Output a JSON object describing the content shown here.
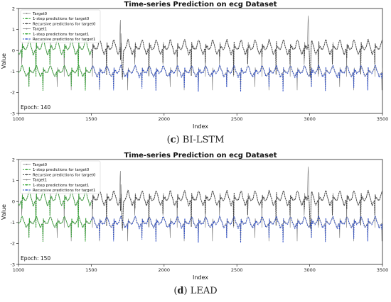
{
  "colors": {
    "target": "#7a7a7a",
    "target_marker": "#333333",
    "one_step_target0": "#2ca02c",
    "recursive_target0": "#444444",
    "one_step_target1": "#2ca02c",
    "recursive_target1": "#3050c8"
  },
  "panels": [
    {
      "caption_prefix": "(",
      "caption_letter": "c",
      "caption_suffix": ") BI-LSTM",
      "chart_data": {
        "type": "line",
        "title": "Time-series Prediction on ecg Dataset",
        "xlabel": "Index",
        "ylabel": "Value",
        "xlim": [
          1000,
          3500
        ],
        "ylim": [
          -3,
          2
        ],
        "xticks": [
          "1000",
          "1500",
          "2000",
          "2500",
          "3000",
          "3500"
        ],
        "yticks": [
          "-3",
          "-2",
          "-1",
          "0",
          "1",
          "2"
        ],
        "annotation": "Epoch: 140",
        "legend_placement": "top-left",
        "legend": [
          "Target0",
          "1-step predictions for target0",
          "Recursive predictions for target0",
          "Target1",
          "1-step predictions for target1",
          "Recursive predictions for target1"
        ],
        "one_step_range": [
          1000,
          1500
        ],
        "recursive_range": [
          1500,
          3500
        ],
        "beat_period": 97,
        "beat_start": 1020,
        "series_baseline": {
          "target0": 0.05,
          "target1": -1.05
        },
        "spikes": [
          {
            "x": 1700,
            "y": 1.8
          },
          {
            "x": 2990,
            "y": 1.9
          }
        ]
      }
    },
    {
      "caption_prefix": "(",
      "caption_letter": "d",
      "caption_suffix": ") LEAD",
      "chart_data": {
        "type": "line",
        "title": "Time-series Prediction on ecg Dataset",
        "xlabel": "Index",
        "ylabel": "Value",
        "xlim": [
          1000,
          3500
        ],
        "ylim": [
          -3,
          2
        ],
        "xticks": [
          "1000",
          "1500",
          "2000",
          "2500",
          "3000",
          "3500"
        ],
        "yticks": [
          "-3",
          "-2",
          "-1",
          "0",
          "1",
          "2"
        ],
        "annotation": "Epoch: 150",
        "legend_placement": "top-left",
        "legend": [
          "Target0",
          "1-step predictions for target0",
          "Recursive predictions for target0",
          "Target1",
          "1-step predictions for target1",
          "Recursive predictions for target1"
        ],
        "one_step_range": [
          1000,
          1500
        ],
        "recursive_range": [
          1500,
          3500
        ],
        "beat_period": 97,
        "beat_start": 1020,
        "series_baseline": {
          "target0": 0.05,
          "target1": -1.05
        },
        "spikes": [
          {
            "x": 1700,
            "y": 1.8
          },
          {
            "x": 2990,
            "y": 1.9
          }
        ]
      }
    }
  ]
}
